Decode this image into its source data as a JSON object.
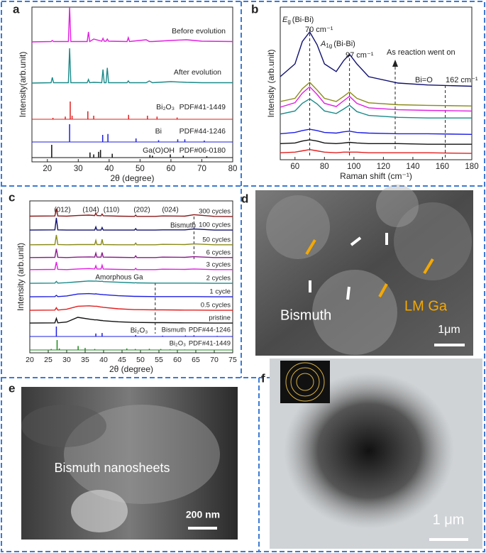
{
  "panels": [
    "a",
    "b",
    "c",
    "d",
    "e",
    "f"
  ],
  "chart_data": [
    {
      "type": "xrd",
      "xlabel": "2θ (degree)",
      "ylabel": "Intensity(arb.unit)",
      "xlim": [
        15,
        80
      ],
      "xticks": [
        20,
        30,
        40,
        50,
        60,
        70,
        80
      ],
      "x": [
        15,
        21.2,
        21.6,
        22,
        26.8,
        27.2,
        27.6,
        32.9,
        33.3,
        33.7,
        35,
        37.6,
        38,
        38.4,
        39,
        39.4,
        39.8,
        45.8,
        46.2,
        46.6,
        52,
        53,
        54,
        60,
        65,
        70,
        80
      ],
      "series": [
        {
          "name": "Before evolution",
          "color": "#e21ee2",
          "values": [
            2,
            3,
            6,
            3,
            3,
            100,
            3,
            3,
            30,
            3,
            10,
            4,
            12,
            4,
            4,
            10,
            4,
            3,
            14,
            3,
            8,
            3,
            3,
            6,
            8,
            4,
            3
          ]
        },
        {
          "name": "After evolution",
          "color": "#1a8a8a",
          "values": [
            2,
            3,
            18,
            3,
            3,
            100,
            3,
            3,
            12,
            3,
            4,
            3,
            40,
            3,
            3,
            45,
            3,
            3,
            8,
            3,
            3,
            8,
            3,
            6,
            4,
            3,
            3
          ]
        },
        {
          "name": "Bi₂O₃",
          "card": "PDF#41-1449",
          "color": "#e21e1e",
          "style": "stick",
          "x": [
            21.8,
            25.8,
            27.4,
            28,
            33.1,
            35,
            46.3,
            52.4,
            55.5,
            62
          ],
          "values": [
            8,
            15,
            100,
            20,
            45,
            20,
            25,
            20,
            15,
            10
          ]
        },
        {
          "name": "Bi",
          "card": "PDF#44-1246",
          "color": "#1e1ee2",
          "style": "stick",
          "x": [
            27.2,
            37.9,
            39.6,
            48.7,
            56,
            62.2,
            64.5,
            70.8
          ],
          "values": [
            100,
            40,
            45,
            20,
            10,
            15,
            15,
            8
          ]
        },
        {
          "name": "Ga(O)OH",
          "card": "PDF#06-0180",
          "color": "#111111",
          "style": "stick",
          "x": [
            21.4,
            33.8,
            35,
            36.6,
            37.2,
            41,
            53.2,
            54,
            59.8,
            64,
            71.6
          ],
          "values": [
            100,
            40,
            25,
            45,
            60,
            30,
            20,
            15,
            25,
            15,
            10
          ]
        }
      ]
    },
    {
      "type": "raman",
      "xlabel": "Raman shift (cm⁻¹)",
      "ylabel": "Intensity (arb.unit)",
      "xlim": [
        50,
        180
      ],
      "xticks": [
        60,
        80,
        100,
        120,
        140,
        160,
        180
      ],
      "x": [
        50,
        60,
        65,
        70,
        75,
        80,
        88,
        93,
        97,
        102,
        110,
        130,
        150,
        180
      ],
      "series": [
        {
          "color": "#101070",
          "values": [
            30,
            50,
            85,
            100,
            80,
            50,
            38,
            55,
            65,
            50,
            30,
            20,
            17,
            15
          ]
        },
        {
          "color": "#8a8a1a",
          "values": [
            10,
            15,
            30,
            40,
            28,
            15,
            10,
            18,
            25,
            15,
            8,
            5,
            4,
            3
          ]
        },
        {
          "color": "#e21ee2",
          "values": [
            10,
            17,
            32,
            42,
            30,
            16,
            11,
            20,
            27,
            16,
            9,
            6,
            5,
            4
          ]
        },
        {
          "color": "#1a8a8a",
          "values": [
            8,
            13,
            25,
            32,
            24,
            13,
            9,
            16,
            22,
            12,
            6,
            3,
            2,
            2
          ]
        },
        {
          "color": "#1e1ee2",
          "values": [
            4,
            6,
            9,
            11,
            9,
            6,
            5,
            7,
            8,
            6,
            5,
            4,
            4,
            3
          ]
        },
        {
          "color": "#111111",
          "values": [
            3,
            4,
            7,
            9,
            7,
            4,
            3,
            4,
            5,
            4,
            3,
            3,
            2,
            2
          ]
        },
        {
          "color": "#e21e1e",
          "values": [
            2,
            3,
            5,
            7,
            5,
            3,
            2,
            3,
            3,
            3,
            2,
            2,
            2,
            1
          ]
        }
      ],
      "annotations": [
        {
          "parts": [
            "E",
            "g",
            "(Bi-Bi)"
          ]
        },
        {
          "text": "70 cm⁻¹"
        },
        {
          "parts": [
            "A",
            "1g",
            "(Bi-Bi)"
          ]
        },
        {
          "text": "97 cm⁻¹"
        },
        {
          "text": "As reaction went on"
        },
        {
          "text": "Bi=O"
        },
        {
          "text": "162 cm⁻¹"
        }
      ],
      "dashed_x": [
        70,
        97,
        162
      ],
      "arrow_x": 128
    },
    {
      "type": "xrd",
      "xlabel": "2θ (degree)",
      "ylabel": "Intensity (arb.unit)",
      "xlim": [
        20,
        75
      ],
      "xticks": [
        20,
        25,
        30,
        35,
        40,
        45,
        50,
        55,
        60,
        65,
        70,
        75
      ],
      "x": [
        20,
        26.8,
        27.2,
        27.6,
        30,
        33,
        36,
        37.6,
        37.9,
        38.2,
        39.3,
        39.6,
        39.9,
        44,
        48.4,
        48.7,
        49,
        54,
        56,
        62,
        64.5,
        70,
        75
      ],
      "series": [
        {
          "name": "300 cycles",
          "color": "#8a1a1a",
          "values": [
            5,
            6,
            40,
            6,
            5,
            8,
            10,
            8,
            20,
            8,
            7,
            15,
            7,
            5,
            4,
            10,
            4,
            4,
            6,
            5,
            12,
            4,
            3
          ]
        },
        {
          "name": "100 cycles",
          "color": "#101070",
          "values": [
            3,
            4,
            60,
            4,
            3,
            3,
            3,
            3,
            18,
            3,
            3,
            15,
            3,
            3,
            3,
            10,
            3,
            3,
            4,
            4,
            8,
            3,
            3
          ]
        },
        {
          "name": "50 cycles",
          "color": "#8a8a1a",
          "values": [
            4,
            5,
            50,
            5,
            4,
            5,
            5,
            5,
            25,
            5,
            5,
            30,
            5,
            4,
            4,
            12,
            4,
            4,
            6,
            5,
            8,
            4,
            4
          ]
        },
        {
          "name": "6 cycles",
          "color": "#8a1a8a",
          "values": [
            4,
            5,
            45,
            5,
            4,
            6,
            7,
            6,
            25,
            6,
            6,
            28,
            6,
            5,
            4,
            12,
            4,
            4,
            6,
            5,
            8,
            4,
            4
          ]
        },
        {
          "name": "3 cycles",
          "color": "#e21ee2",
          "values": [
            4,
            5,
            40,
            5,
            4,
            7,
            9,
            7,
            22,
            7,
            7,
            25,
            7,
            5,
            4,
            10,
            4,
            4,
            6,
            5,
            7,
            4,
            4
          ]
        },
        {
          "name": "2 cycles",
          "color": "#1a8a8a",
          "values": [
            3,
            4,
            12,
            4,
            6,
            10,
            14,
            13,
            14,
            13,
            12,
            13,
            11,
            8,
            5,
            6,
            5,
            4,
            4,
            4,
            4,
            3,
            3
          ]
        },
        {
          "name": "1 cycle",
          "color": "#1e1ee2",
          "values": [
            3,
            4,
            10,
            4,
            7,
            16,
            18,
            16,
            17,
            16,
            14,
            14,
            13,
            8,
            5,
            5,
            5,
            4,
            4,
            4,
            4,
            3,
            3
          ]
        },
        {
          "name": "0.5 cycles",
          "color": "#e21e1e",
          "values": [
            3,
            4,
            15,
            4,
            8,
            22,
            24,
            22,
            22,
            22,
            18,
            18,
            17,
            10,
            6,
            6,
            6,
            5,
            5,
            4,
            4,
            3,
            3
          ]
        },
        {
          "name": "pristine",
          "color": "#111111",
          "values": [
            3,
            4,
            25,
            4,
            8,
            30,
            22,
            18,
            18,
            18,
            15,
            15,
            14,
            9,
            6,
            6,
            6,
            5,
            5,
            4,
            4,
            3,
            3
          ]
        },
        {
          "name": "Bismuth",
          "card": "PDF#44-1246",
          "color": "#1e1ee2",
          "style": "stick",
          "x": [
            27.2,
            37.9,
            39.6,
            48.7,
            56,
            62.2,
            64.5,
            70.8
          ],
          "values": [
            100,
            30,
            35,
            15,
            8,
            10,
            12,
            6
          ]
        },
        {
          "name": "Bi₂O₃",
          "card": "PDF#41-1449",
          "color": "#1a8a1a",
          "style": "stick",
          "x": [
            25.8,
            27.4,
            28,
            33.1,
            35,
            37.6,
            46.3,
            48.6,
            52.4,
            55.5,
            58,
            62
          ],
          "values": [
            10,
            100,
            15,
            40,
            20,
            10,
            15,
            10,
            12,
            10,
            6,
            5
          ]
        }
      ],
      "annotations": [
        {
          "text": "(012)"
        },
        {
          "text": "(104)"
        },
        {
          "text": "(110)"
        },
        {
          "text": "(202)"
        },
        {
          "text": "(024)"
        },
        {
          "text": "Bismuth",
          "color": "#e21e1e"
        },
        {
          "text": "Amorphous Ga",
          "color": "#1a9a8a"
        },
        {
          "text": "Bi₂O₃"
        }
      ],
      "dashed_x": [
        54,
        64.5
      ]
    }
  ],
  "images": [
    {
      "labels": [
        "Bismuth",
        "LM Ga",
        "1μm"
      ]
    },
    {
      "labels": [
        "Bismuth nanosheets",
        "200 nm"
      ]
    },
    {
      "labels": [
        "1 μm"
      ]
    }
  ]
}
